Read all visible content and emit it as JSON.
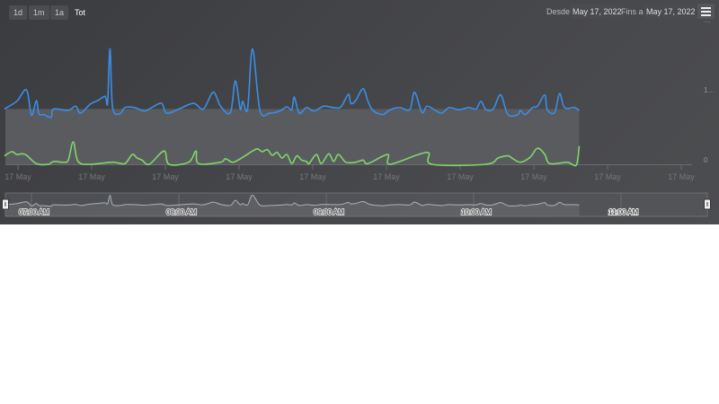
{
  "range_selector": {
    "buttons": [
      "1d",
      "1m",
      "1a",
      "Tot"
    ],
    "selected": "Tot"
  },
  "date_range": {
    "from_label": "Desde",
    "from_value": "May 17, 2022",
    "to_label": "Fins a",
    "to_value": "May 17, 2022"
  },
  "menu_icon": "hamburger-menu-icon",
  "chart_data": {
    "type": "line",
    "x_tick_labels": [
      "17 May",
      "17 May",
      "17 May",
      "17 May",
      "17 May",
      "17 May",
      "17 May",
      "17 May",
      "17 May",
      "17 May"
    ],
    "y_tick_labels": [
      "0",
      "1…",
      "…"
    ],
    "ylim": [
      0,
      2
    ],
    "xlim": [
      "06:49",
      "11:31"
    ],
    "grid": false,
    "series": [
      {
        "color": "#3a8ee6",
        "points": [
          [
            "06:49",
            0.79
          ],
          [
            "06:54",
            0.9
          ],
          [
            "06:58",
            1.06
          ],
          [
            "07:00",
            0.7
          ],
          [
            "07:02",
            0.91
          ],
          [
            "07:03",
            0.72
          ],
          [
            "07:05",
            0.71
          ],
          [
            "07:08",
            0.67
          ],
          [
            "07:09",
            0.79
          ],
          [
            "07:15",
            0.77
          ],
          [
            "07:18",
            0.83
          ],
          [
            "07:20",
            0.73
          ],
          [
            "07:24",
            0.86
          ],
          [
            "07:27",
            0.91
          ],
          [
            "07:30",
            0.97
          ],
          [
            "07:31",
            0.88
          ],
          [
            "07:32",
            1.65
          ],
          [
            "07:33",
            0.82
          ],
          [
            "07:36",
            0.72
          ],
          [
            "07:38",
            0.81
          ],
          [
            "07:42",
            0.81
          ],
          [
            "07:46",
            0.76
          ],
          [
            "07:49",
            0.81
          ],
          [
            "07:53",
            0.87
          ],
          [
            "07:55",
            0.73
          ],
          [
            "08:00",
            0.79
          ],
          [
            "08:06",
            0.87
          ],
          [
            "08:10",
            0.79
          ],
          [
            "08:14",
            1.03
          ],
          [
            "08:17",
            0.83
          ],
          [
            "08:21",
            0.74
          ],
          [
            "08:23",
            1.19
          ],
          [
            "08:25",
            0.79
          ],
          [
            "08:26",
            0.9
          ],
          [
            "08:28",
            0.79
          ],
          [
            "08:30",
            1.65
          ],
          [
            "08:33",
            0.77
          ],
          [
            "08:37",
            0.73
          ],
          [
            "08:41",
            0.76
          ],
          [
            "08:44",
            0.82
          ],
          [
            "08:46",
            0.78
          ],
          [
            "08:47",
            0.96
          ],
          [
            "08:49",
            0.73
          ],
          [
            "08:52",
            0.81
          ],
          [
            "08:55",
            0.76
          ],
          [
            "08:59",
            0.83
          ],
          [
            "09:03",
            0.81
          ],
          [
            "09:06",
            0.82
          ],
          [
            "09:09",
            1.0
          ],
          [
            "09:10",
            0.87
          ],
          [
            "09:12",
            0.91
          ],
          [
            "09:15",
            1.08
          ],
          [
            "09:17",
            0.9
          ],
          [
            "09:19",
            0.77
          ],
          [
            "09:23",
            0.71
          ],
          [
            "09:26",
            0.78
          ],
          [
            "09:30",
            0.81
          ],
          [
            "09:34",
            0.78
          ],
          [
            "09:36",
            1.03
          ],
          [
            "09:39",
            0.74
          ],
          [
            "09:41",
            0.83
          ],
          [
            "09:44",
            0.78
          ],
          [
            "09:47",
            0.73
          ],
          [
            "09:50",
            0.81
          ],
          [
            "09:54",
            0.78
          ],
          [
            "09:58",
            0.81
          ],
          [
            "10:01",
            0.79
          ],
          [
            "10:03",
            0.9
          ],
          [
            "10:05",
            0.78
          ],
          [
            "10:08",
            0.79
          ],
          [
            "10:11",
            0.99
          ],
          [
            "10:14",
            0.71
          ],
          [
            "10:18",
            0.71
          ],
          [
            "10:19",
            0.77
          ],
          [
            "10:21",
            0.71
          ],
          [
            "10:24",
            0.81
          ],
          [
            "10:26",
            0.83
          ],
          [
            "10:29",
            0.99
          ],
          [
            "10:30",
            0.78
          ],
          [
            "10:33",
            0.74
          ],
          [
            "10:35",
            1.01
          ],
          [
            "10:37",
            0.81
          ],
          [
            "10:41",
            0.81
          ],
          [
            "10:43",
            0.77
          ]
        ]
      },
      {
        "color": "#7fd66b",
        "points": [
          [
            "06:49",
            0.12
          ],
          [
            "06:52",
            0.18
          ],
          [
            "06:54",
            0.14
          ],
          [
            "06:56",
            0.15
          ],
          [
            "06:58",
            0.13
          ],
          [
            "07:02",
            0.01
          ],
          [
            "07:07",
            0
          ],
          [
            "07:09",
            0.04
          ],
          [
            "07:13",
            0.03
          ],
          [
            "07:15",
            0.06
          ],
          [
            "07:17",
            0.32
          ],
          [
            "07:19",
            0.04
          ],
          [
            "07:24",
            0
          ],
          [
            "07:33",
            0.03
          ],
          [
            "07:38",
            0.01
          ],
          [
            "07:41",
            0.14
          ],
          [
            "07:43",
            0.09
          ],
          [
            "07:45",
            0.06
          ],
          [
            "07:48",
            0
          ],
          [
            "07:54",
            0.19
          ],
          [
            "07:56",
            0
          ],
          [
            "08:04",
            0.03
          ],
          [
            "08:07",
            0.19
          ],
          [
            "08:08",
            0.01
          ],
          [
            "08:17",
            0.03
          ],
          [
            "08:19",
            0.08
          ],
          [
            "08:22",
            0.03
          ],
          [
            "08:26",
            0.1
          ],
          [
            "08:30",
            0.19
          ],
          [
            "08:32",
            0.22
          ],
          [
            "08:34",
            0.18
          ],
          [
            "08:36",
            0.21
          ],
          [
            "08:38",
            0.13
          ],
          [
            "08:40",
            0.17
          ],
          [
            "08:42",
            0.09
          ],
          [
            "08:44",
            0.14
          ],
          [
            "08:46",
            0.01
          ],
          [
            "08:48",
            0.12
          ],
          [
            "08:50",
            0.06
          ],
          [
            "08:52",
            0.04
          ],
          [
            "08:53",
            0.01
          ],
          [
            "08:56",
            0.14
          ],
          [
            "08:58",
            0.01
          ],
          [
            "09:01",
            0.15
          ],
          [
            "09:03",
            0.04
          ],
          [
            "09:05",
            0.14
          ],
          [
            "09:08",
            0.03
          ],
          [
            "09:12",
            0.03
          ],
          [
            "09:15",
            0.06
          ],
          [
            "09:17",
            0.01
          ],
          [
            "09:25",
            0.14
          ],
          [
            "09:26",
            0
          ],
          [
            "09:41",
            0.17
          ],
          [
            "09:43",
            0
          ],
          [
            "10:05",
            0
          ],
          [
            "10:10",
            0.09
          ],
          [
            "10:14",
            0.12
          ],
          [
            "10:16",
            0.08
          ],
          [
            "10:19",
            0.03
          ],
          [
            "10:23",
            0.1
          ],
          [
            "10:26",
            0.23
          ],
          [
            "10:29",
            0.14
          ],
          [
            "10:31",
            0.01
          ],
          [
            "10:38",
            0.03
          ],
          [
            "10:40",
            0
          ],
          [
            "10:42",
            0
          ],
          [
            "10:43",
            0.26
          ]
        ]
      }
    ],
    "navigator": {
      "labels": [
        "07:00 AM",
        "08:00 AM",
        "09:00 AM",
        "10:00 AM",
        "11:00 AM"
      ],
      "selected_range": [
        "start",
        "end"
      ]
    }
  }
}
